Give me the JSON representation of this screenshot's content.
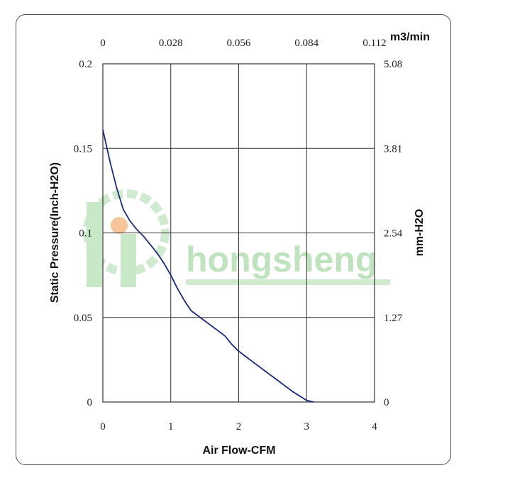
{
  "chart_data": {
    "type": "line",
    "xlabel": "Air Flow-CFM",
    "ylabel": "Static Pressure(Inch-H2O)",
    "x_ticks": [
      "0",
      "1",
      "2",
      "3",
      "4"
    ],
    "y_ticks": [
      "0",
      "0.05",
      "0.1",
      "0.15",
      "0.2"
    ],
    "x2_label": "m3/min",
    "x2_ticks": [
      "0",
      "0.028",
      "0.056",
      "0.084",
      "0.112"
    ],
    "y2_label": "mm-H2O",
    "y2_ticks": [
      "0",
      "1.27",
      "2.54",
      "3.81",
      "5.08"
    ],
    "xlim": [
      0,
      4
    ],
    "ylim": [
      0,
      0.2
    ],
    "grid": true,
    "line_color": "#1a2a7a",
    "series": [
      {
        "x": [
          0,
          0.1,
          0.2,
          0.3,
          0.4,
          0.5,
          0.6,
          0.7,
          0.8,
          0.9,
          1.0,
          1.1,
          1.2,
          1.3,
          1.5,
          1.7,
          1.8,
          1.9,
          2.0,
          2.2,
          2.4,
          2.6,
          2.8,
          3.0,
          3.1
        ],
        "y": [
          0.161,
          0.143,
          0.127,
          0.114,
          0.107,
          0.102,
          0.098,
          0.093,
          0.088,
          0.082,
          0.075,
          0.067,
          0.06,
          0.054,
          0.048,
          0.042,
          0.039,
          0.034,
          0.03,
          0.024,
          0.018,
          0.012,
          0.006,
          0.001,
          0
        ]
      }
    ]
  },
  "watermark": {
    "text": "hongsheng",
    "color": "#bfe3bf",
    "accent": "#f6c59a"
  }
}
